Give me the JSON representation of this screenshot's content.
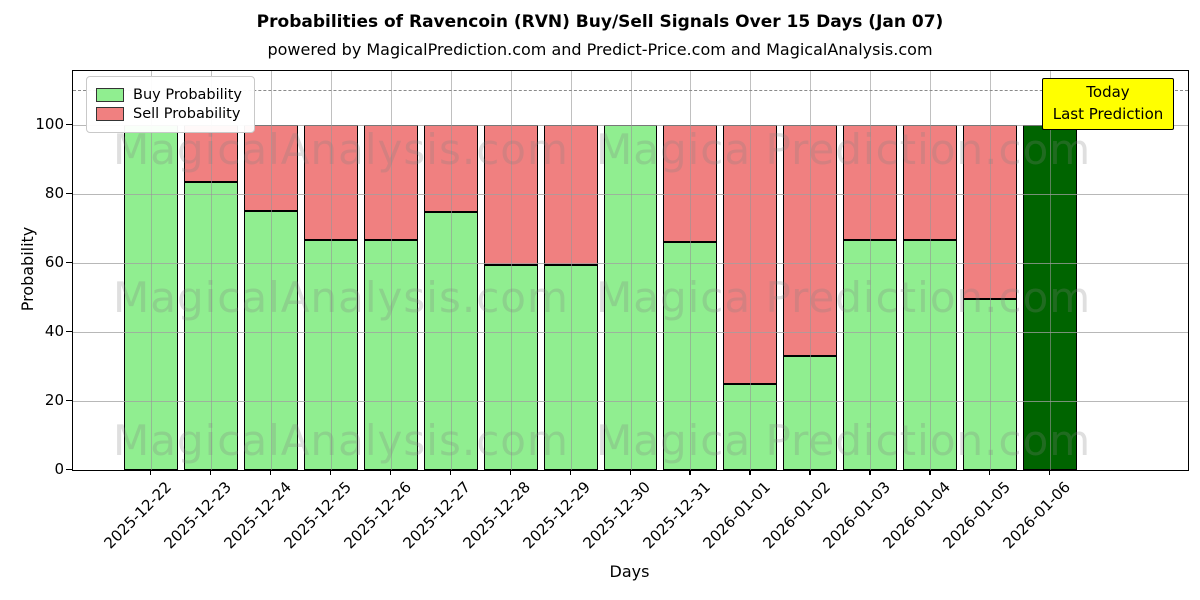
{
  "title": "Probabilities of Ravencoin (RVN) Buy/Sell Signals Over 15 Days (Jan 07)",
  "subtitle": "powered by MagicalPrediction.com and Predict-Price.com and MagicalAnalysis.com",
  "legend": {
    "items": [
      {
        "label": "Buy Probability",
        "color": "#90EE90"
      },
      {
        "label": "Sell Probability",
        "color": "#F08080"
      }
    ]
  },
  "annotation": {
    "line1": "Today",
    "line2": "Last Prediction",
    "bg_color": "#FFFF00"
  },
  "watermarks": {
    "left_text": "MagicalAnalysis.com",
    "right_text": "Magica Prediction.com"
  },
  "chart_data": {
    "type": "bar",
    "stacked": true,
    "title": "Probabilities of Ravencoin (RVN) Buy/Sell Signals Over 15 Days (Jan 07)",
    "xlabel": "Days",
    "ylabel": "Probability",
    "categories": [
      "2025-12-22",
      "2025-12-23",
      "2025-12-24",
      "2025-12-25",
      "2025-12-26",
      "2025-12-27",
      "2025-12-28",
      "2025-12-29",
      "2025-12-30",
      "2025-12-31",
      "2026-01-01",
      "2026-01-02",
      "2026-01-03",
      "2026-01-04",
      "2026-01-05",
      "2026-01-06"
    ],
    "series": [
      {
        "name": "Buy Probability",
        "color": "#90EE90",
        "values": [
          100,
          83.5,
          75,
          66.7,
          66.7,
          74.7,
          59.3,
          59.3,
          100,
          66,
          24.8,
          33,
          66.7,
          66.7,
          49.5,
          100
        ]
      },
      {
        "name": "Sell Probability",
        "color": "#F08080",
        "values": [
          0,
          16.5,
          25,
          33.3,
          33.3,
          25.3,
          40.7,
          40.7,
          0,
          34,
          75.2,
          67,
          33.3,
          33.3,
          50.5,
          0
        ]
      }
    ],
    "today_bar": {
      "category": "2026-01-06",
      "color": "#006400",
      "note": "Today / Last Prediction"
    },
    "yticks": [
      0,
      20,
      40,
      60,
      80,
      100
    ],
    "ylim": [
      0,
      115.5
    ],
    "dashed_line_y": 110,
    "grid": true,
    "legend_position": "upper left",
    "bar_edge_color": "#000000"
  }
}
